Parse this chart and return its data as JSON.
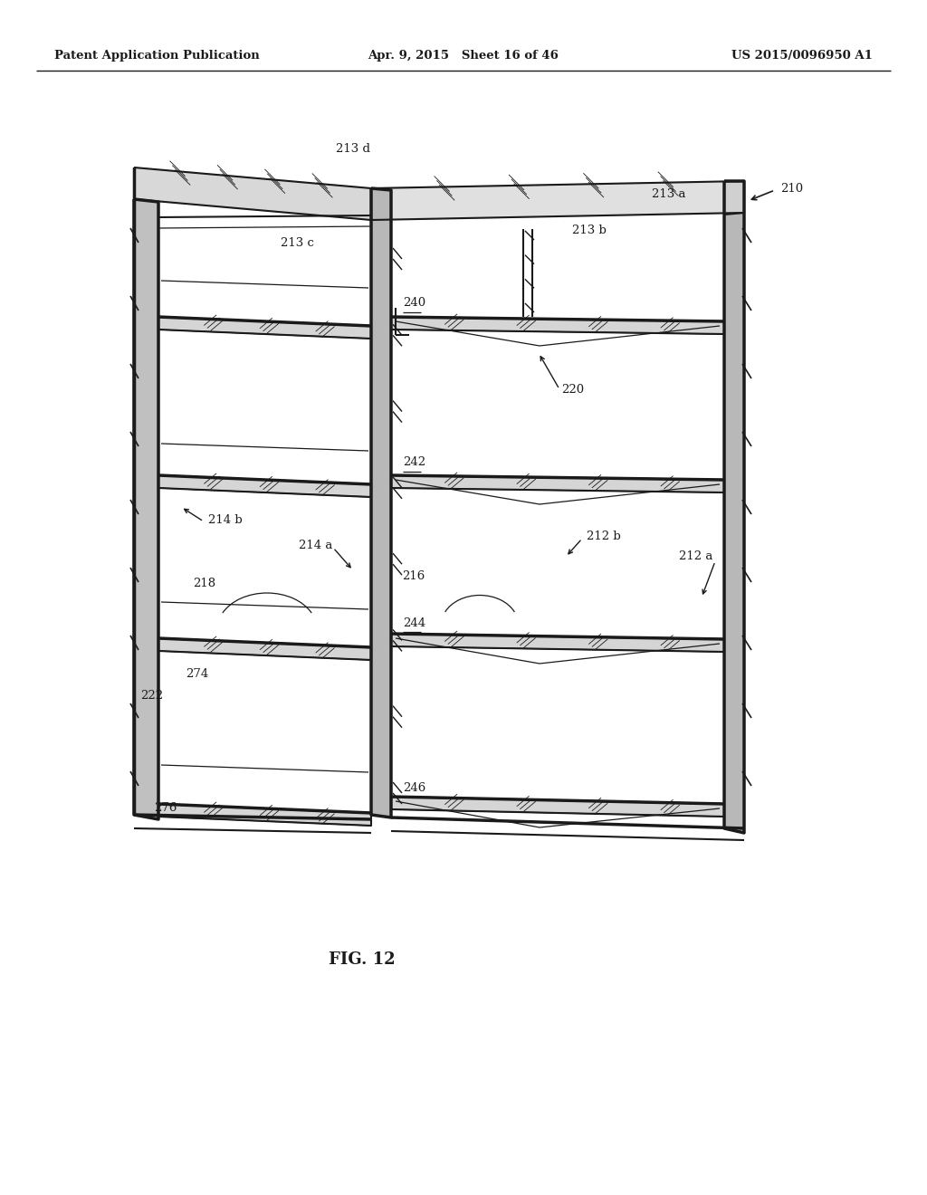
{
  "bg_color": "#ffffff",
  "lc": "#1a1a1a",
  "header_left": "Patent Application Publication",
  "header_mid": "Apr. 9, 2015   Sheet 16 of 46",
  "header_right": "US 2015/0096950 A1",
  "fig_label": "FIG. 12"
}
